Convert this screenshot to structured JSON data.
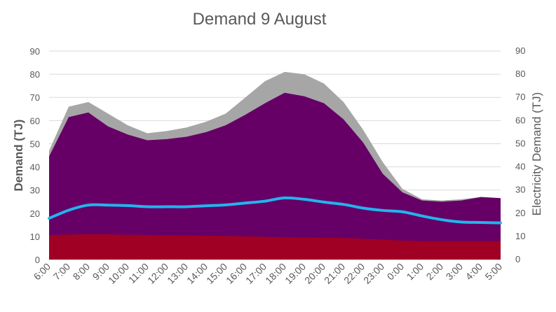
{
  "chart_data": {
    "type": "area",
    "title": "Demand 9 August",
    "ylabel": "Demand (TJ)",
    "y2label": "Electricity Demand (TJ)",
    "ylim": [
      0,
      90
    ],
    "y2lim": [
      0,
      90
    ],
    "yticks": [
      "0",
      "10",
      "20",
      "30",
      "40",
      "50",
      "60",
      "70",
      "80",
      "90"
    ],
    "y2ticks": [
      "0",
      "10",
      "20",
      "30",
      "40",
      "50",
      "60",
      "70",
      "80",
      "90"
    ],
    "grid": true,
    "categories": [
      "6:00",
      "7:00",
      "8:00",
      "9:00",
      "10:00",
      "11:00",
      "12:00",
      "13:00",
      "14:00",
      "15:00",
      "16:00",
      "17:00",
      "18:00",
      "19:00",
      "20:00",
      "21:00",
      "22:00",
      "23:00",
      "0:00",
      "1:00",
      "2:00",
      "3:00",
      "4:00",
      "5:00"
    ],
    "stack_totals": [
      {
        "color": "#a6a6a6",
        "values": [
          47,
          66,
          68,
          63,
          58,
          54.5,
          55.5,
          57,
          59.5,
          63,
          70,
          77,
          81,
          80,
          76,
          68,
          56,
          42,
          30.5,
          26,
          25.5,
          26,
          27,
          26.5
        ]
      },
      {
        "color": "#660066",
        "values": [
          44.5,
          61.5,
          63.5,
          57.5,
          54,
          51.5,
          52,
          53,
          55,
          58,
          62.5,
          67.5,
          72,
          70.5,
          67.5,
          60.5,
          50.5,
          37,
          29,
          25.5,
          25,
          25.5,
          27,
          26.5
        ]
      },
      {
        "color": "#a00024",
        "values": [
          10.5,
          10.8,
          10.9,
          10.9,
          10.7,
          10.6,
          10.5,
          10.4,
          10.3,
          10.2,
          10.0,
          9.8,
          9.6,
          9.5,
          9.4,
          9.3,
          9.0,
          8.6,
          8.2,
          8.0,
          8.0,
          8.0,
          8.0,
          8.0
        ]
      }
    ],
    "line": {
      "color": "#22b4ee",
      "axis": "right",
      "values": [
        17.8,
        21.3,
        23.5,
        23.5,
        23.3,
        22.8,
        22.8,
        22.8,
        23.2,
        23.6,
        24.4,
        25.2,
        26.6,
        26.0,
        24.8,
        23.8,
        22.2,
        21.2,
        20.6,
        18.8,
        17.2,
        16.2,
        16.0,
        15.8
      ]
    }
  }
}
